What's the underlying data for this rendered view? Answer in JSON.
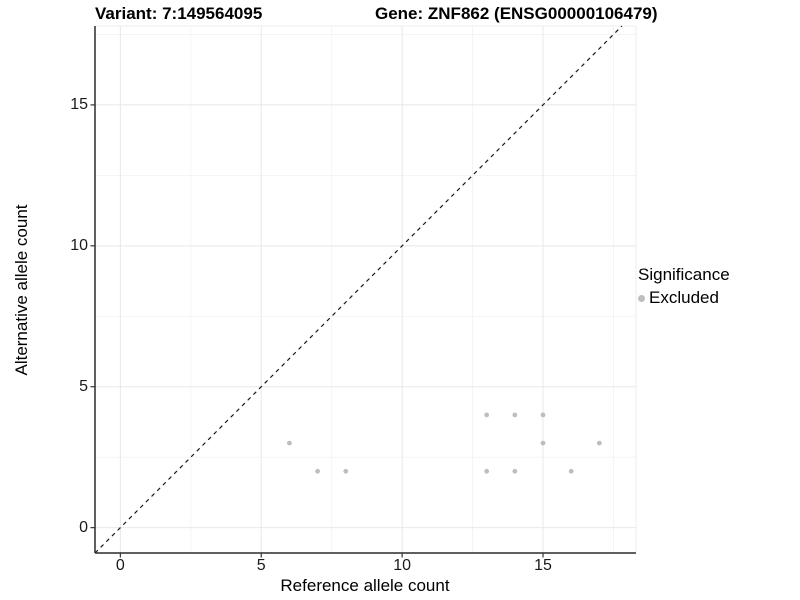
{
  "titles": {
    "variant": "Variant: 7:149564095",
    "gene": "Gene: ZNF862 (ENSG00000106479)"
  },
  "axes": {
    "x_label": "Reference allele count",
    "y_label": "Alternative allele count",
    "x_ticks": [
      "0",
      "5",
      "10",
      "15"
    ],
    "y_ticks": [
      "0",
      "5",
      "10",
      "15"
    ]
  },
  "legend": {
    "title": "Significance",
    "items": [
      {
        "label": "Excluded",
        "color": "#bebebe"
      }
    ]
  },
  "colors": {
    "point": "#bebebe",
    "grid_major": "#e8e8e8",
    "grid_minor": "#f2f2f2",
    "panel_border": "#ececec",
    "axis_line": "#2b2b2b",
    "tick_mark": "#333333",
    "identity_line": "#1a1a1a"
  },
  "chart_data": {
    "type": "scatter",
    "title": "Variant: 7:149564095 — Gene: ZNF862 (ENSG00000106479)",
    "xlabel": "Reference allele count",
    "ylabel": "Alternative allele count",
    "x_tick_values": [
      0,
      5,
      10,
      15
    ],
    "y_tick_values": [
      0,
      5,
      10,
      15
    ],
    "x_minor_gridlines": [
      2.5,
      7.5,
      12.5,
      17.5
    ],
    "y_minor_gridlines": [
      2.5,
      7.5,
      12.5,
      17.5
    ],
    "xlim": [
      -0.9,
      18.3
    ],
    "ylim": [
      -0.9,
      17.8
    ],
    "grid": "on",
    "legend_position": "right",
    "reference_line": {
      "type": "identity y=x",
      "intercept": 0,
      "slope": 1,
      "style": "dashed"
    },
    "series": [
      {
        "name": "Excluded",
        "color": "#bebebe",
        "points": [
          [
            6,
            3
          ],
          [
            7,
            2
          ],
          [
            8,
            2
          ],
          [
            13,
            2
          ],
          [
            13,
            4
          ],
          [
            14,
            2
          ],
          [
            14,
            4
          ],
          [
            15,
            3
          ],
          [
            15,
            4
          ],
          [
            16,
            2
          ],
          [
            17,
            3
          ]
        ]
      }
    ]
  }
}
